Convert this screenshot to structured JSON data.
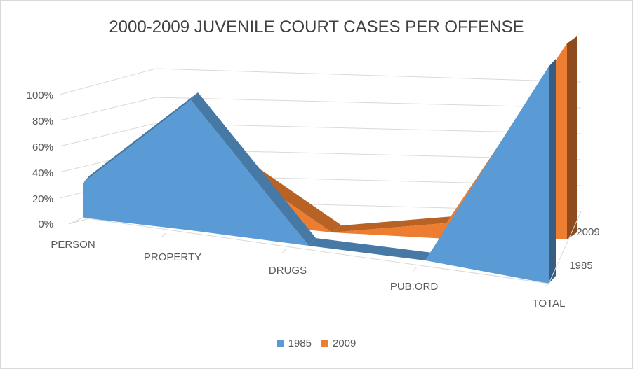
{
  "chart_data": {
    "type": "area",
    "title": "2000-2009 JUVENILE COURT CASES PER OFFENSE",
    "categories": [
      "PERSON",
      "PROPERTY",
      "DRUGS",
      "PUB.ORD",
      "TOTAL"
    ],
    "y_ticks": [
      "0%",
      "20%",
      "40%",
      "60%",
      "80%",
      "100%"
    ],
    "ylim": [
      0,
      100
    ],
    "depth_labels": [
      "2009",
      "1985"
    ],
    "series": [
      {
        "name": "1985",
        "color": "#5b9bd5",
        "values": [
          16,
          60,
          0,
          0,
          100
        ]
      },
      {
        "name": "2009",
        "color": "#ed7d31",
        "values": [
          25,
          27,
          0,
          8,
          100
        ]
      }
    ],
    "legend": {
      "position": "bottom"
    }
  }
}
